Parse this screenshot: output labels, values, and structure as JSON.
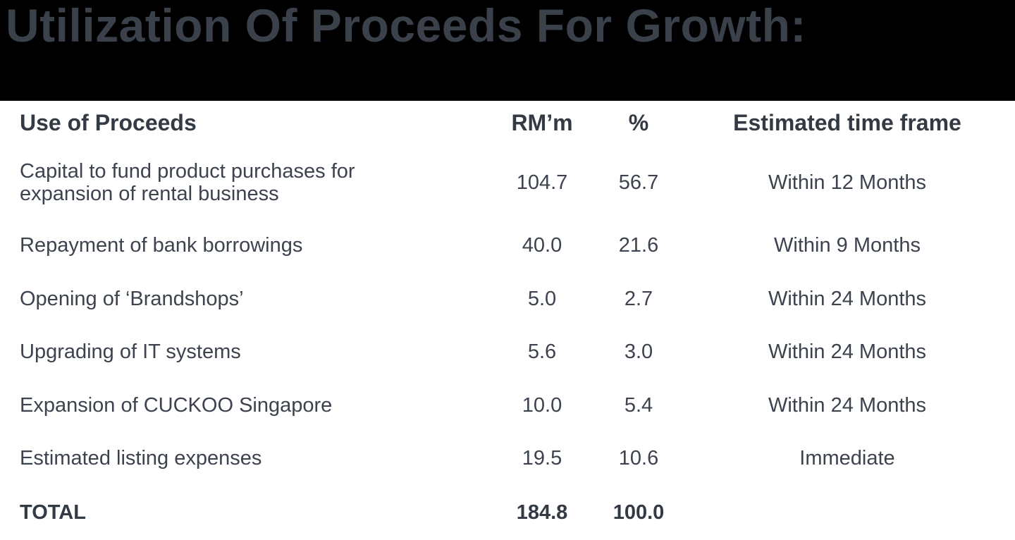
{
  "title": "Utilization Of Proceeds For Growth:",
  "colors": {
    "banner_background": "#000000",
    "title_text": "#3a414b",
    "table_text": "#3d434e",
    "heading_text": "#333a44"
  },
  "table": {
    "columns": {
      "use": "Use of Proceeds",
      "rm": "RM’m",
      "pct": "%",
      "time": "Estimated time frame"
    },
    "rows": [
      {
        "use": "Capital to fund product purchases for expansion of rental business",
        "rm": "104.7",
        "pct": "56.7",
        "time": "Within 12 Months"
      },
      {
        "use": "Repayment of bank borrowings",
        "rm": "40.0",
        "pct": "21.6",
        "time": "Within 9 Months"
      },
      {
        "use": "Opening of ‘Brandshops’",
        "rm": "5.0",
        "pct": "2.7",
        "time": "Within 24 Months"
      },
      {
        "use": "Upgrading of IT systems",
        "rm": "5.6",
        "pct": "3.0",
        "time": "Within 24 Months"
      },
      {
        "use": "Expansion of CUCKOO Singapore",
        "rm": "10.0",
        "pct": "5.4",
        "time": "Within 24 Months"
      },
      {
        "use": "Estimated listing expenses",
        "rm": "19.5",
        "pct": "10.6",
        "time": "Immediate"
      }
    ],
    "total": {
      "use": "TOTAL",
      "rm": "184.8",
      "pct": "100.0",
      "time": ""
    }
  }
}
